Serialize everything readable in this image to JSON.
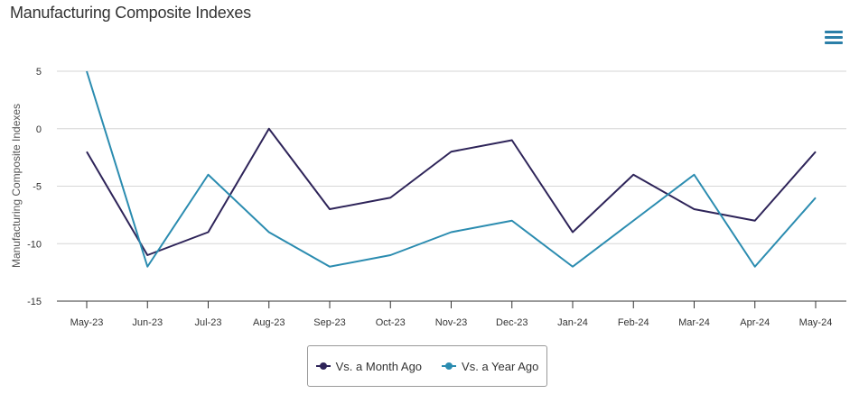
{
  "title": "Manufacturing Composite Indexes",
  "menu_icon": "hamburger-menu-icon",
  "chart_data": {
    "type": "line",
    "title": "Manufacturing Composite Indexes",
    "ylabel": "Manufacturing Composite Indexes",
    "xlabel": "",
    "categories": [
      "May-23",
      "Jun-23",
      "Jul-23",
      "Aug-23",
      "Sep-23",
      "Oct-23",
      "Nov-23",
      "Dec-23",
      "Jan-24",
      "Feb-24",
      "Mar-24",
      "Apr-24",
      "May-24"
    ],
    "ylim": [
      -15,
      5
    ],
    "yticks": [
      5,
      0,
      -5,
      -10,
      -15
    ],
    "grid": true,
    "legend_position": "bottom-center",
    "series": [
      {
        "name": "Vs. a Month Ago",
        "color": "#2e2459",
        "values": [
          -2,
          -11,
          -9,
          0,
          -7,
          -6,
          -2,
          -1,
          -9,
          -4,
          -7,
          -8,
          -2
        ]
      },
      {
        "name": "Vs. a Year Ago",
        "color": "#2b8cb0",
        "values": [
          5,
          -12,
          -4,
          -9,
          -12,
          -11,
          -9,
          -8,
          -12,
          -8,
          -4,
          -12,
          -6
        ]
      }
    ]
  }
}
